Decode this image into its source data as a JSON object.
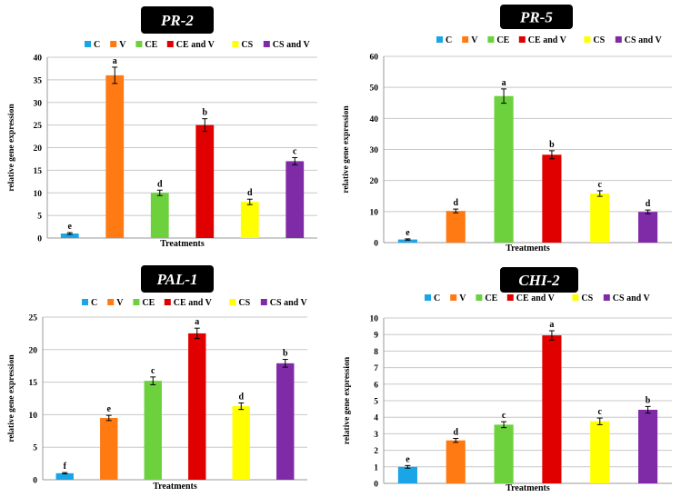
{
  "legend": [
    "C",
    "V",
    "CE",
    "CE and V",
    "CS",
    "CS and V"
  ],
  "colors": [
    "#1aa5e6",
    "#ff7a12",
    "#6cd13c",
    "#e00000",
    "#ffff00",
    "#7f2aa6"
  ],
  "chart_data": [
    {
      "type": "bar",
      "title": "PR-2",
      "xlabel": "Treatments",
      "ylabel": "relative gene expression",
      "categories": [
        "C",
        "V",
        "CE",
        "CE and V",
        "CS",
        "CS and V"
      ],
      "values": [
        1,
        36,
        10,
        25,
        8,
        17
      ],
      "errors": [
        0.2,
        1.8,
        0.6,
        1.4,
        0.6,
        0.8
      ],
      "letters": [
        "e",
        "a",
        "d",
        "b",
        "d",
        "c"
      ],
      "ylim": [
        0,
        40
      ],
      "yticks": [
        0,
        5,
        10,
        15,
        20,
        25,
        30,
        35,
        40
      ],
      "grid": true,
      "legend": "top"
    },
    {
      "type": "bar",
      "title": "PR-5",
      "xlabel": "Treatments",
      "ylabel": "relative gene expression",
      "categories": [
        "C",
        "V",
        "CE",
        "CE and V",
        "CS",
        "CS and V"
      ],
      "values": [
        1,
        10.2,
        47.2,
        28.3,
        15.8,
        9.9
      ],
      "errors": [
        0.2,
        0.6,
        2.3,
        1.3,
        0.9,
        0.6
      ],
      "letters": [
        "e",
        "d",
        "a",
        "b",
        "c",
        "d"
      ],
      "ylim": [
        0,
        60
      ],
      "yticks": [
        0,
        10,
        20,
        30,
        40,
        50,
        60
      ],
      "grid": true,
      "legend": "top"
    },
    {
      "type": "bar",
      "title": "PAL-1",
      "xlabel": "Treatments",
      "ylabel": "relative gene expression",
      "categories": [
        "C",
        "V",
        "CE",
        "CE and V",
        "CS",
        "CS and V"
      ],
      "values": [
        1,
        9.5,
        15.2,
        22.5,
        11.3,
        17.9
      ],
      "errors": [
        0.1,
        0.4,
        0.6,
        0.8,
        0.5,
        0.6
      ],
      "letters": [
        "f",
        "e",
        "c",
        "a",
        "d",
        "b"
      ],
      "ylim": [
        0,
        25
      ],
      "yticks": [
        0,
        5,
        10,
        15,
        20,
        25
      ],
      "grid": true,
      "legend": "top"
    },
    {
      "type": "bar",
      "title": "CHI-2",
      "xlabel": "Treatments",
      "ylabel": "relative gene expression",
      "categories": [
        "C",
        "V",
        "CE",
        "CE and V",
        "CS",
        "CS and V"
      ],
      "values": [
        1,
        2.6,
        3.55,
        8.95,
        3.75,
        4.45
      ],
      "errors": [
        0.08,
        0.12,
        0.18,
        0.28,
        0.2,
        0.2
      ],
      "letters": [
        "e",
        "d",
        "c",
        "a",
        "c",
        "b"
      ],
      "ylim": [
        0,
        10
      ],
      "yticks": [
        0,
        1,
        2,
        3,
        4,
        5,
        6,
        7,
        8,
        9,
        10
      ],
      "grid": true,
      "legend": "top"
    }
  ]
}
